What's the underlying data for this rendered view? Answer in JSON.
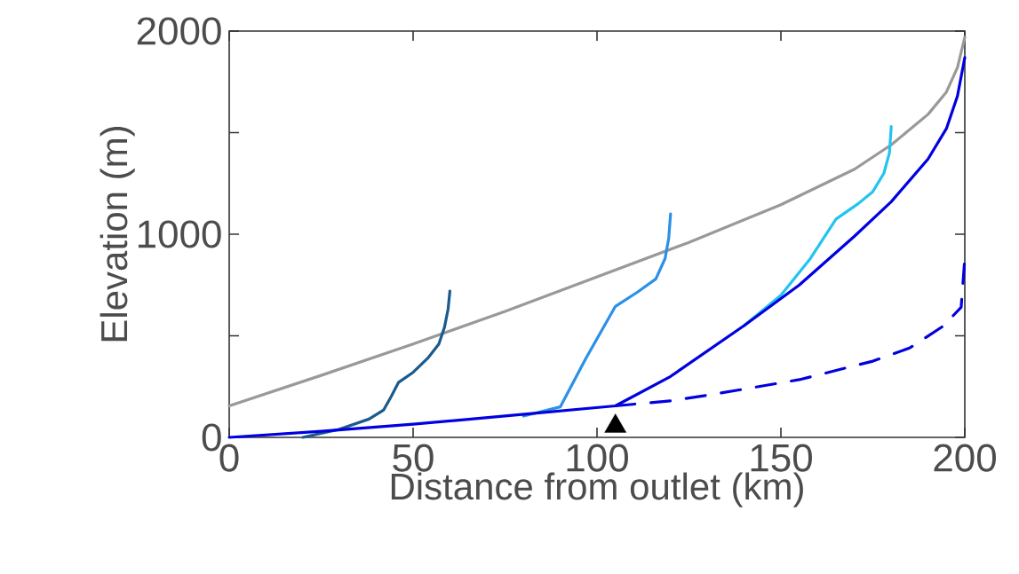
{
  "chart_data": {
    "type": "line",
    "xlabel": "Distance from outlet (km)",
    "ylabel": "Elevation (m)",
    "xlim": [
      0,
      200
    ],
    "ylim": [
      0,
      2000
    ],
    "xticks": [
      0,
      50,
      100,
      150,
      200
    ],
    "yticks": [
      0,
      {
        "value": 500,
        "label": null
      },
      1000,
      {
        "value": 1500,
        "label": null
      },
      2000
    ],
    "line_style": "solid",
    "marker": "none",
    "series": [
      {
        "color": "#999999",
        "x": [
          0,
          25,
          50,
          75,
          100,
          125,
          150,
          170,
          180,
          190,
          195,
          198,
          200
        ],
        "values": [
          155,
          305,
          460,
          620,
          790,
          960,
          1145,
          1320,
          1440,
          1590,
          1700,
          1820,
          1970
        ]
      },
      {
        "color": "#0000e0",
        "line_style": "dashed",
        "x": [
          105,
          120,
          131,
          155,
          175,
          185,
          194,
          199,
          200
        ],
        "values": [
          155,
          180,
          210,
          284,
          375,
          440,
          546,
          640,
          880
        ]
      },
      {
        "color": "#1a5a8c",
        "x": [
          20,
          30,
          38,
          42,
          44,
          46,
          50,
          54,
          57,
          58.5,
          59.5,
          60
        ],
        "values": [
          0,
          40,
          90,
          135,
          200,
          270,
          320,
          390,
          460,
          540,
          630,
          720
        ]
      },
      {
        "color": "#2b90e8",
        "x": [
          80,
          90,
          97,
          105,
          111,
          116,
          118.5,
          119.5,
          120
        ],
        "values": [
          105,
          150,
          390,
          645,
          715,
          780,
          880,
          980,
          1100
        ]
      },
      {
        "color": "#22c4f0",
        "x": [
          140,
          150,
          158,
          165,
          171,
          175,
          178,
          179.5,
          180
        ],
        "values": [
          550,
          700,
          880,
          1075,
          1150,
          1210,
          1300,
          1400,
          1530
        ]
      },
      {
        "color": "#0000e0",
        "x": [
          0,
          25,
          50,
          75,
          105,
          120,
          140,
          155,
          170,
          180,
          190,
          195,
          198,
          200
        ],
        "values": [
          0,
          30,
          65,
          105,
          155,
          300,
          550,
          750,
          990,
          1160,
          1370,
          1520,
          1680,
          1870
        ]
      },
      {
        "type": "scatter",
        "marker": "triangle",
        "color": "#000000",
        "x": [
          105
        ],
        "values": [
          55
        ]
      }
    ]
  }
}
